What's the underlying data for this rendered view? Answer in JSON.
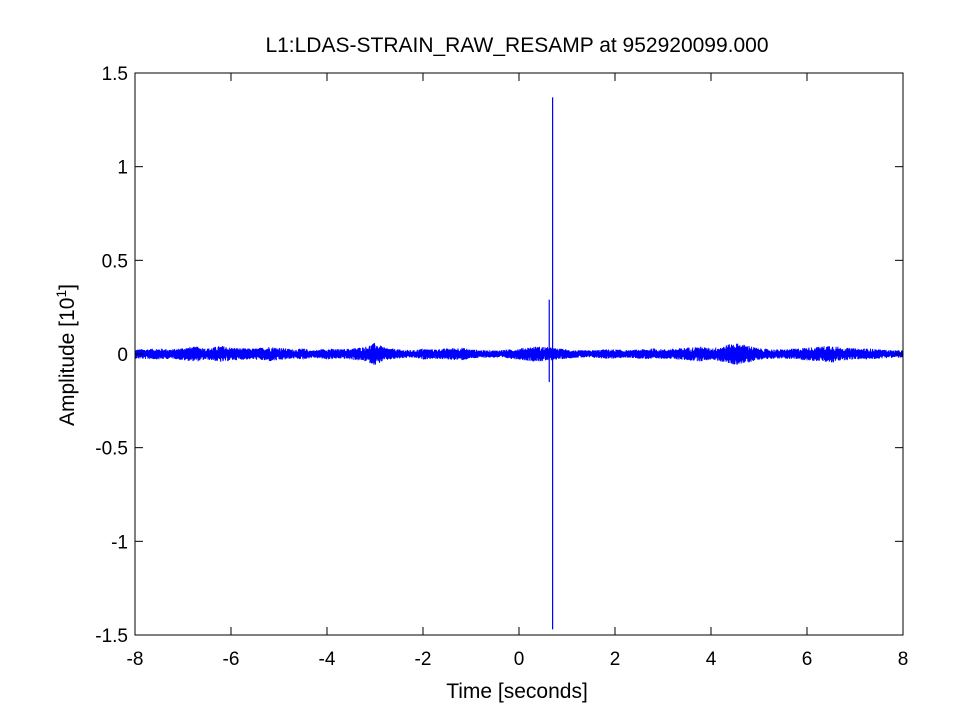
{
  "chart_data": {
    "type": "line",
    "title": "L1:LDAS-STRAIN_RAW_RESAMP at 952920099.000",
    "xlabel": "Time [seconds]",
    "ylabel_main": "Amplitude [10",
    "ylabel_exponent": "1",
    "ylabel_close": "]",
    "xlim": [
      -8,
      8
    ],
    "ylim": [
      -1.5,
      1.5
    ],
    "xticks": [
      "-8",
      "-6",
      "-4",
      "-2",
      "0",
      "2",
      "4",
      "6",
      "8"
    ],
    "yticks": [
      "1.5",
      "1",
      "0.5",
      "0",
      "-0.5",
      "-1",
      "-1.5"
    ],
    "xtick_values": [
      -8,
      -6,
      -4,
      -2,
      0,
      2,
      4,
      6,
      8
    ],
    "ytick_values": [
      1.5,
      1,
      0.5,
      0,
      -0.5,
      -1,
      -1.5
    ],
    "grid": false,
    "line_color": "#0000ff",
    "series": [
      {
        "noise_envelope": {
          "x": [
            -8.0,
            -7.5,
            -7.2,
            -7.0,
            -6.7,
            -6.5,
            -6.2,
            -6.0,
            -5.7,
            -5.5,
            -5.2,
            -5.0,
            -4.7,
            -4.5,
            -4.3,
            -4.0,
            -3.7,
            -3.5,
            -3.2,
            -3.0,
            -2.8,
            -2.5,
            -2.2,
            -2.0,
            -1.8,
            -1.5,
            -1.2,
            -1.0,
            -0.7,
            -0.5,
            -0.2,
            0.0,
            0.3,
            0.5,
            0.8,
            1.0,
            1.2,
            1.5,
            1.8,
            2.0,
            2.3,
            2.5,
            2.8,
            3.0,
            3.3,
            3.5,
            3.8,
            4.0,
            4.2,
            4.5,
            4.8,
            5.0,
            5.3,
            5.5,
            5.8,
            6.0,
            6.3,
            6.5,
            6.7,
            7.0,
            7.3,
            7.5,
            7.8,
            8.0
          ],
          "amplitude": [
            0.025,
            0.03,
            0.025,
            0.035,
            0.04,
            0.03,
            0.045,
            0.035,
            0.03,
            0.03,
            0.04,
            0.035,
            0.025,
            0.03,
            0.02,
            0.03,
            0.025,
            0.03,
            0.04,
            0.06,
            0.035,
            0.025,
            0.02,
            0.03,
            0.025,
            0.03,
            0.035,
            0.025,
            0.02,
            0.02,
            0.025,
            0.03,
            0.04,
            0.04,
            0.03,
            0.025,
            0.02,
            0.02,
            0.025,
            0.025,
            0.02,
            0.025,
            0.03,
            0.025,
            0.03,
            0.035,
            0.04,
            0.03,
            0.04,
            0.06,
            0.045,
            0.03,
            0.025,
            0.025,
            0.03,
            0.035,
            0.04,
            0.05,
            0.035,
            0.03,
            0.03,
            0.025,
            0.02,
            0.02
          ]
        },
        "spikes": [
          {
            "x": 0.63,
            "y": 0.29
          },
          {
            "x": 0.63,
            "y": -0.15
          },
          {
            "x": 0.7,
            "y": 1.37
          },
          {
            "x": 0.7,
            "y": -1.47
          }
        ]
      }
    ]
  }
}
